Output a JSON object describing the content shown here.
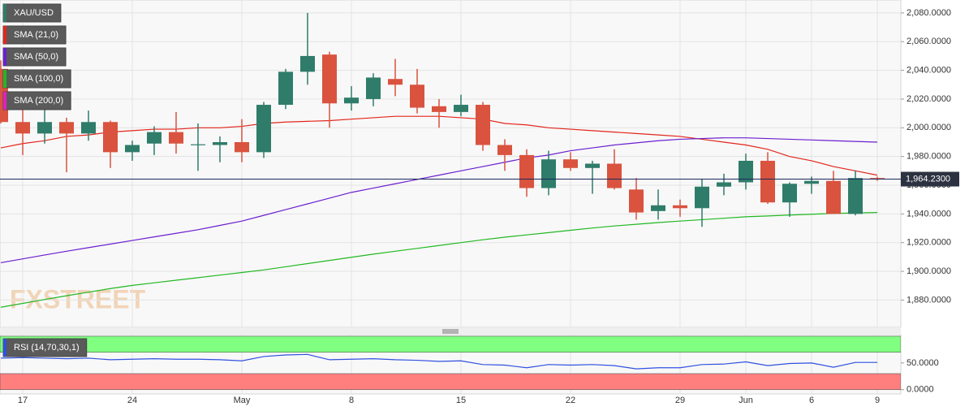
{
  "watermark": "FXSTREET",
  "chart_data": [
    {
      "type": "candlestick",
      "name": "XAU/USD",
      "up_color": "#2f7c6a",
      "down_color": "#d9533f",
      "categories": [
        null,
        "17",
        null,
        null,
        null,
        null,
        "24",
        null,
        null,
        null,
        null,
        "May",
        null,
        null,
        null,
        null,
        "8",
        null,
        null,
        null,
        null,
        "15",
        null,
        null,
        null,
        null,
        "22",
        null,
        null,
        null,
        null,
        "29",
        null,
        null,
        "Jun",
        null,
        null,
        "6",
        null,
        null,
        "9"
      ],
      "open": [
        2041,
        2004,
        1996,
        2004,
        1996,
        2004,
        1983,
        1989,
        1997,
        1988,
        1988,
        1990,
        1983,
        2016,
        2039,
        2051,
        2017,
        2020,
        2034,
        2030,
        2015,
        2011,
        2016,
        1988,
        1981,
        1958,
        1978,
        1972,
        1975,
        1957,
        1942,
        1946,
        1944,
        1959,
        1962,
        1977,
        1948,
        1961,
        1963,
        1940,
        1965
      ],
      "high": [
        2047,
        2013,
        2015,
        2007,
        2012,
        2005,
        1991,
        2001,
        2011,
        2003,
        1994,
        2006,
        2018,
        2041,
        2080,
        2053,
        2029,
        2038,
        2048,
        2041,
        2020,
        2023,
        2018,
        1992,
        1985,
        1984,
        1983,
        1977,
        1985,
        1965,
        1957,
        1950,
        1964,
        1968,
        1982,
        1983,
        1962,
        1966,
        1970,
        1970,
        1966
      ],
      "low": [
        2003,
        1981,
        1989,
        1969,
        1991,
        1972,
        1977,
        1981,
        1982,
        1970,
        1976,
        1976,
        1979,
        2013,
        2030,
        2000,
        2012,
        2015,
        2022,
        2010,
        2000,
        2008,
        1984,
        1970,
        1952,
        1953,
        1970,
        1954,
        1957,
        1936,
        1936,
        1938,
        1931,
        1953,
        1957,
        1947,
        1938,
        1954,
        1940,
        1939,
        1963
      ],
      "close": [
        2004,
        1996,
        2004,
        1996,
        2004,
        1983,
        1988,
        1997,
        1989,
        1988.5,
        1990,
        1983,
        2016,
        2039,
        2050,
        2017,
        2021,
        2035,
        2030,
        2014,
        2011,
        2016,
        1988,
        1981,
        1958,
        1978,
        1972,
        1975,
        1958,
        1941,
        1946,
        1944,
        1959,
        1962,
        1977,
        1948,
        1961,
        1963,
        1940,
        1965,
        1964.23
      ],
      "series": [
        {
          "name": "SMA (21,0)",
          "color": "#e3261c",
          "values": [
            1986,
            1989,
            1991,
            1994,
            1995,
            1997,
            1998,
            1999,
            1999,
            2000,
            2000,
            2001,
            2003,
            2004,
            2004.5,
            2005,
            2006,
            2007,
            2008,
            2008,
            2008,
            2007,
            2006,
            2003,
            2002,
            2000,
            1999,
            1998,
            1997,
            1996,
            1995,
            1994,
            1992,
            1990,
            1988,
            1985,
            1980,
            1977,
            1973,
            1970,
            1967
          ]
        },
        {
          "name": "SMA (50,0)",
          "color": "#6a1fd0",
          "values": [
            1906,
            1908.7,
            1911.4,
            1914,
            1916.5,
            1919,
            1921.5,
            1924,
            1926.5,
            1929,
            1932,
            1935,
            1939,
            1943,
            1947,
            1951,
            1955,
            1958,
            1961,
            1964,
            1967,
            1970,
            1973,
            1976,
            1979,
            1981,
            1984,
            1986,
            1988,
            1989.5,
            1991,
            1992,
            1992.5,
            1993,
            1993,
            1992.5,
            1992,
            1991.5,
            1991,
            1990.5,
            1990
          ]
        },
        {
          "name": "SMA (100,0)",
          "color": "#22b822",
          "values": [
            1875,
            1877.7,
            1880.4,
            1883,
            1885.5,
            1888,
            1890.2,
            1892,
            1893.8,
            1895.6,
            1897.4,
            1899.2,
            1901,
            1903.2,
            1905.4,
            1907.6,
            1909.8,
            1912,
            1914,
            1916,
            1918,
            1920,
            1922,
            1923.8,
            1925.4,
            1927,
            1928.6,
            1930.2,
            1931.6,
            1932.8,
            1934,
            1935,
            1936,
            1937,
            1938,
            1938.6,
            1939.2,
            1939.8,
            1940.3,
            1940.7,
            1941
          ]
        },
        {
          "name": "SMA (200,0)",
          "color": "#e020c0",
          "values": [
            null,
            null,
            null,
            null,
            null,
            null,
            null,
            null,
            null,
            null,
            null,
            null,
            null,
            null,
            null,
            null,
            null,
            null,
            null,
            null,
            null,
            null,
            null,
            null,
            null,
            null,
            null,
            null,
            null,
            null,
            null,
            null,
            null,
            null,
            null,
            null,
            null,
            null,
            null,
            null,
            null
          ]
        }
      ],
      "last_price": {
        "value": 1964.23,
        "label": "1,964.2300"
      },
      "last_price_color": "#1c2a5a",
      "ylim": [
        1861,
        2089
      ],
      "yticks": [
        {
          "value": 1880,
          "label": "1,880.0000"
        },
        {
          "value": 1900,
          "label": "1,900.0000"
        },
        {
          "value": 1920,
          "label": "1,920.0000"
        },
        {
          "value": 1940,
          "label": "1,940.0000"
        },
        {
          "value": 1960,
          "label": "1,960.0000"
        },
        {
          "value": 1980,
          "label": "1,980.0000"
        },
        {
          "value": 2000,
          "label": "2,000.0000"
        },
        {
          "value": 2020,
          "label": "2,020.0000"
        },
        {
          "value": 2040,
          "label": "2,040.0000"
        },
        {
          "value": 2060,
          "label": "2,060.0000"
        },
        {
          "value": 2080,
          "label": "2,080.0000"
        }
      ],
      "grid": true
    },
    {
      "type": "line",
      "series": [
        {
          "name": "RSI (14,70,30,1)",
          "color": "#3050e0",
          "values": [
            59,
            60,
            59,
            58,
            59,
            56,
            57,
            58,
            57,
            57,
            56,
            54,
            62,
            65,
            66,
            56,
            57,
            58,
            56,
            55,
            53,
            54,
            47,
            46,
            41,
            47,
            46,
            47,
            45,
            39,
            41,
            41,
            47,
            48,
            52,
            45,
            49,
            50,
            42,
            51,
            51
          ]
        }
      ],
      "zones": [
        {
          "from": 70,
          "to": 100,
          "color": "#80ff80"
        },
        {
          "from": 0,
          "to": 30,
          "color": "#ff7f7f"
        }
      ],
      "ylim": [
        -8,
        103
      ],
      "yticks": [
        {
          "value": 0,
          "label": "0.0000"
        },
        {
          "value": 50,
          "label": "50.0000"
        }
      ]
    }
  ]
}
